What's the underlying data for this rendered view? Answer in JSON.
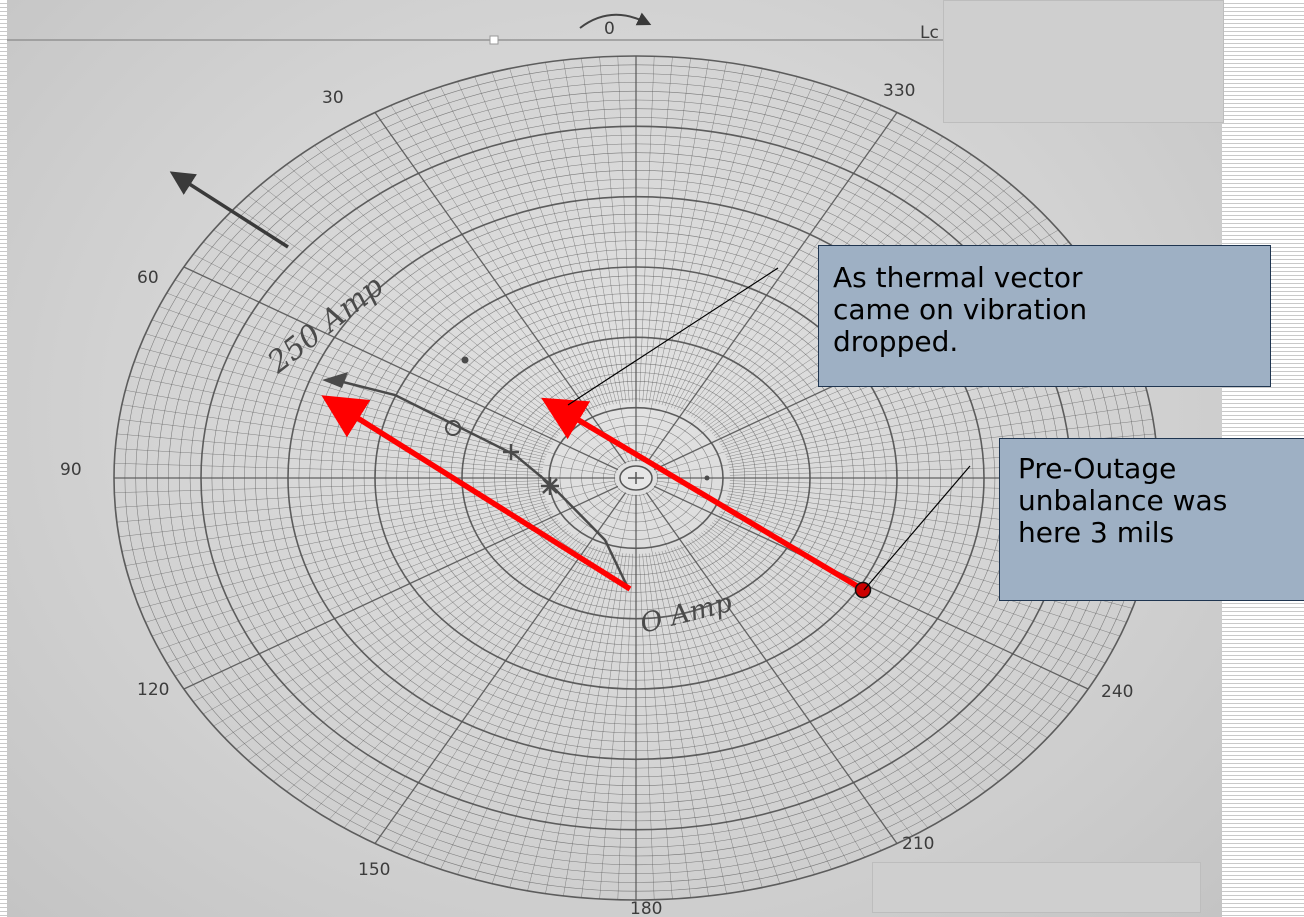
{
  "chart_data": {
    "type": "polar",
    "angle_labels": [
      {
        "text": "30"
      },
      {
        "text": "60"
      },
      {
        "text": "90"
      },
      {
        "text": "120"
      },
      {
        "text": "150"
      },
      {
        "text": "180"
      },
      {
        "text": "210"
      },
      {
        "text": "240"
      },
      {
        "text": "330"
      }
    ],
    "top_marker": "0",
    "handwritten": {
      "amp_high": "250 Amp",
      "amp_zero": "O Amp"
    }
  },
  "callouts": {
    "thermal": {
      "lines": [
        "As thermal vector",
        "came on vibration",
        "dropped."
      ]
    },
    "pre_outage": {
      "lines": [
        "Pre-Outage",
        "unbalance was",
        "here 3 mils"
      ]
    }
  },
  "colors": {
    "arrow": "#ff0000",
    "callout_fill": "#9eb0c4",
    "callout_border": "#1f3550",
    "grid": "#555555"
  }
}
